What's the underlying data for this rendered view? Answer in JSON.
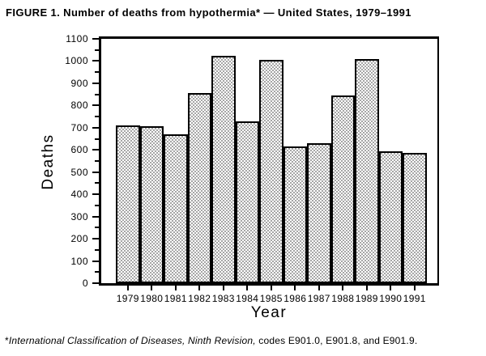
{
  "title": "FIGURE 1. Number of deaths from hypothermia* — United States, 1979–1991",
  "chart_data": {
    "type": "bar",
    "title": "Number of deaths from hypothermia — United States, 1979–1991",
    "categories": [
      "1979",
      "1980",
      "1981",
      "1982",
      "1983",
      "1984",
      "1985",
      "1986",
      "1987",
      "1988",
      "1989",
      "1990",
      "1991"
    ],
    "values": [
      710,
      705,
      670,
      855,
      1025,
      730,
      1005,
      615,
      630,
      845,
      1010,
      595,
      585
    ],
    "xlabel": "Year",
    "ylabel": "Deaths",
    "ylim": [
      0,
      1100
    ],
    "ytick_interval": 100,
    "yminor_tick_interval": 50,
    "yticks": [
      "0",
      "100",
      "200",
      "300",
      "400",
      "500",
      "600",
      "700",
      "800",
      "900",
      "1000",
      "1100"
    ],
    "grid": false,
    "legend": "none",
    "bar_fill": "stipple-dots",
    "colors": {
      "axis": "#000000",
      "bar_border": "#000000",
      "bar_dot": "#6e6e6e",
      "background": "#ffffff",
      "text": "#000000"
    }
  },
  "footnote": {
    "marker": "*",
    "italic_text": "International Classification of Diseases, Ninth Revision,",
    "regular_text": "  codes E901.0, E901.8, and E901.9."
  }
}
